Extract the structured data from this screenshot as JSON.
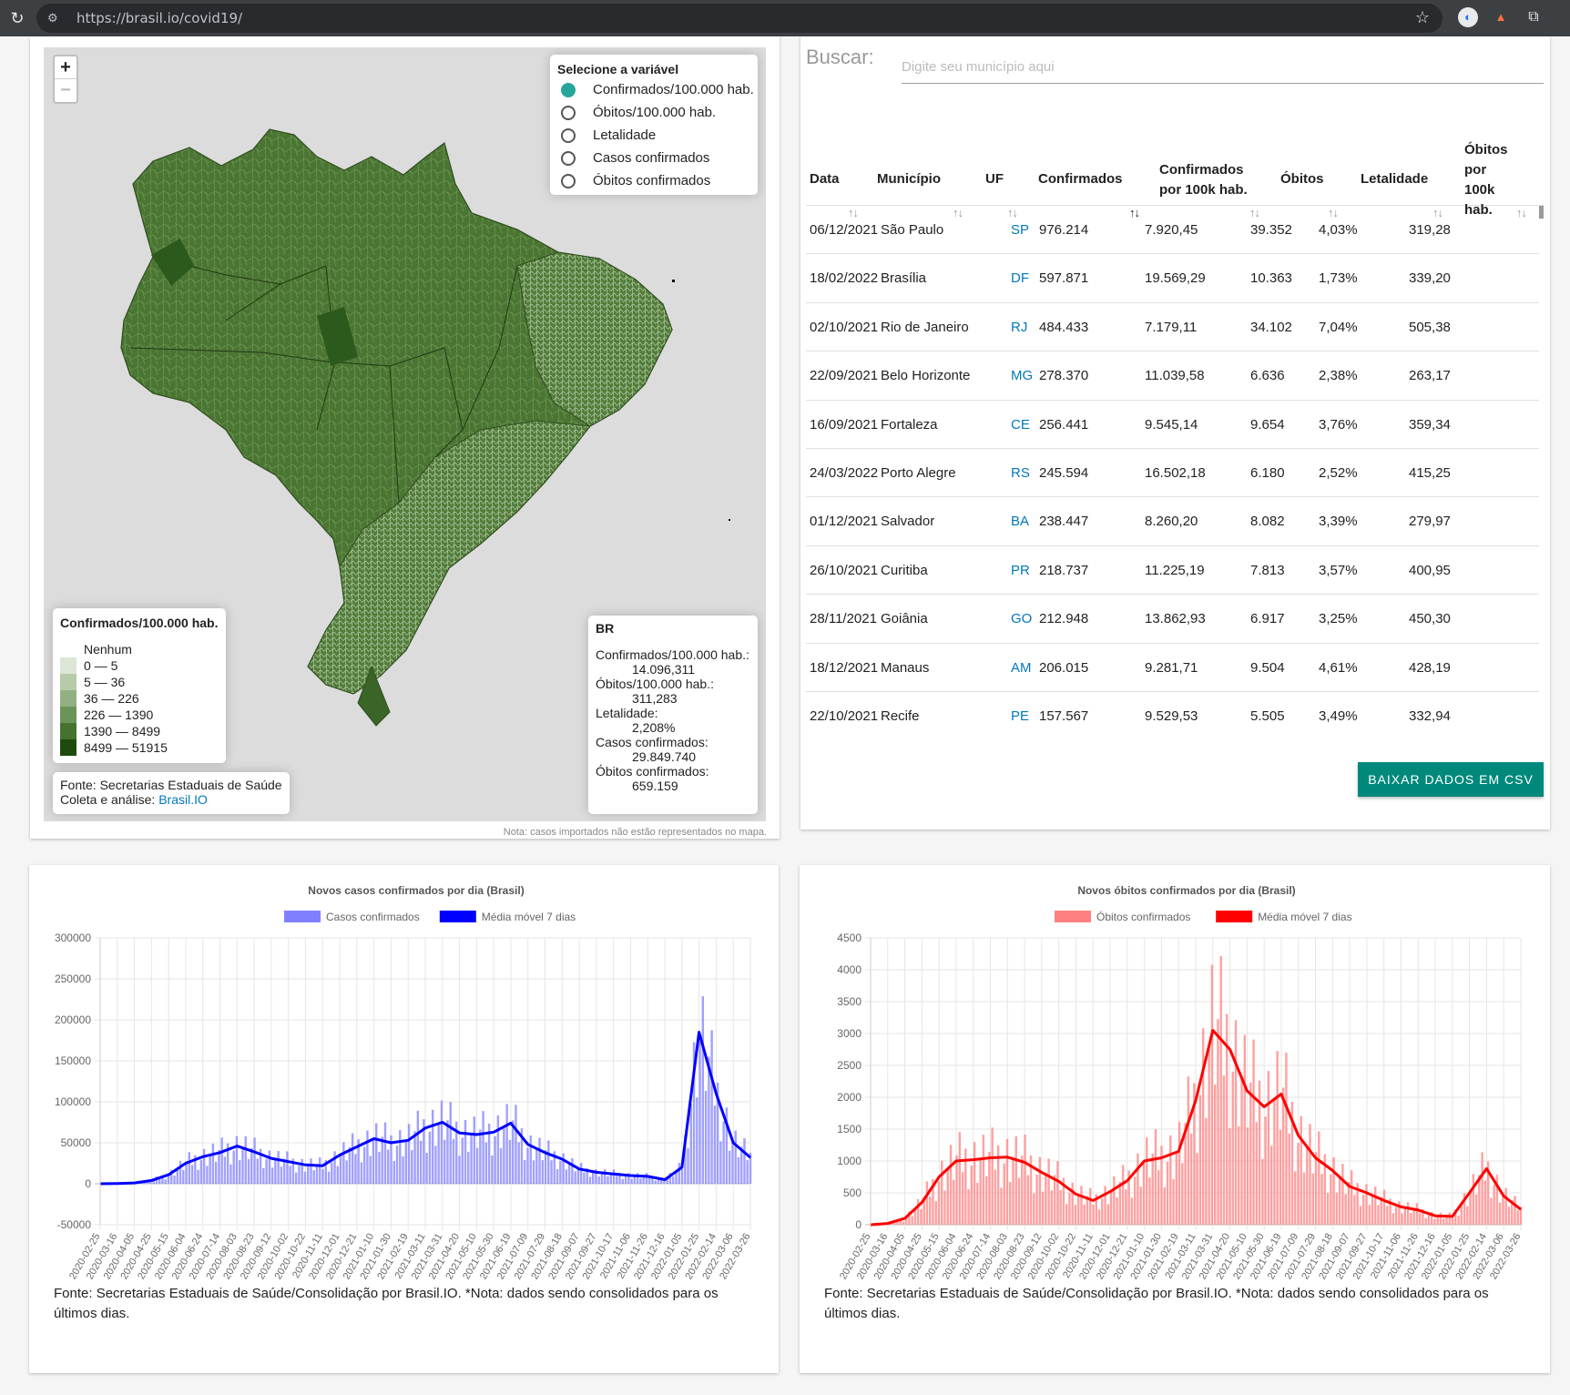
{
  "browser": {
    "url": "https://brasil.io/covid19/"
  },
  "map": {
    "zoom_in": "+",
    "zoom_out": "−",
    "variable_selector": {
      "title": "Selecione a variável",
      "options": [
        {
          "label": "Confirmados/100.000 hab.",
          "selected": true
        },
        {
          "label": "Óbitos/100.000 hab.",
          "selected": false
        },
        {
          "label": "Letalidade",
          "selected": false
        },
        {
          "label": "Casos confirmados",
          "selected": false
        },
        {
          "label": "Óbitos confirmados",
          "selected": false
        }
      ]
    },
    "legend": {
      "title": "Confirmados/100.000 hab.",
      "items": [
        {
          "label": "Nenhum",
          "color": "#ffffff"
        },
        {
          "label": "0 — 5",
          "color": "#dde6d6"
        },
        {
          "label": "5 — 36",
          "color": "#b7cba9"
        },
        {
          "label": "36 — 226",
          "color": "#93b082"
        },
        {
          "label": "226 — 1390",
          "color": "#6d9458"
        },
        {
          "label": "1390 — 8499",
          "color": "#46722f"
        },
        {
          "label": "8499 — 51915",
          "color": "#1f4a0e"
        }
      ]
    },
    "source": {
      "line1": "Fonte: Secretarias Estaduais de Saúde",
      "line2_prefix": "Coleta e análise: ",
      "line2_link": "Brasil.IO"
    },
    "summary": {
      "region": "BR",
      "rows": [
        {
          "label": "Confirmados/100.000 hab.:",
          "value": "14.096,311"
        },
        {
          "label": "Óbitos/100.000 hab.:",
          "value": "311,283"
        },
        {
          "label": "Letalidade:",
          "value": "2,208%"
        },
        {
          "label": "Casos confirmados:",
          "value": "29.849.740"
        },
        {
          "label": "Óbitos confirmados:",
          "value": "659.159"
        }
      ]
    },
    "note": "Nota: casos importados não estão representados no mapa."
  },
  "table": {
    "search_label": "Buscar:",
    "search_placeholder": "Digite seu município aqui",
    "headers": {
      "data": "Data",
      "municipio": "Município",
      "uf": "UF",
      "confirmados": "Confirmados",
      "conf100k_1": "Confirmados",
      "conf100k_2": "por 100k hab.",
      "obitos": "Óbitos",
      "letalidade": "Letalidade",
      "obitos100k_1": "Óbitos",
      "obitos100k_2": "por",
      "obitos100k_3": "100k",
      "obitos100k_4": "hab."
    },
    "sort_icon": "↑↓",
    "rows": [
      [
        "06/12/2021",
        "São Paulo",
        "SP",
        "976.214",
        "7.920,45",
        "39.352",
        "4,03%",
        "319,28"
      ],
      [
        "18/02/2022",
        "Brasília",
        "DF",
        "597.871",
        "19.569,29",
        "10.363",
        "1,73%",
        "339,20"
      ],
      [
        "02/10/2021",
        "Rio de Janeiro",
        "RJ",
        "484.433",
        "7.179,11",
        "34.102",
        "7,04%",
        "505,38"
      ],
      [
        "22/09/2021",
        "Belo Horizonte",
        "MG",
        "278.370",
        "11.039,58",
        "6.636",
        "2,38%",
        "263,17"
      ],
      [
        "16/09/2021",
        "Fortaleza",
        "CE",
        "256.441",
        "9.545,14",
        "9.654",
        "3,76%",
        "359,34"
      ],
      [
        "24/03/2022",
        "Porto Alegre",
        "RS",
        "245.594",
        "16.502,18",
        "6.180",
        "2,52%",
        "415,25"
      ],
      [
        "01/12/2021",
        "Salvador",
        "BA",
        "238.447",
        "8.260,20",
        "8.082",
        "3,39%",
        "279,97"
      ],
      [
        "26/10/2021",
        "Curitiba",
        "PR",
        "218.737",
        "11.225,19",
        "7.813",
        "3,57%",
        "400,95"
      ],
      [
        "28/11/2021",
        "Goiânia",
        "GO",
        "212.948",
        "13.862,93",
        "6.917",
        "3,25%",
        "450,30"
      ],
      [
        "18/12/2021",
        "Manaus",
        "AM",
        "206.015",
        "9.281,71",
        "9.504",
        "4,61%",
        "428,19"
      ],
      [
        "22/10/2021",
        "Recife",
        "PE",
        "157.567",
        "9.529,53",
        "5.505",
        "3,49%",
        "332,94"
      ]
    ],
    "download_label": "BAIXAR DADOS EM CSV"
  },
  "chart_data": [
    {
      "type": "bar",
      "title": "Novos casos confirmados por dia (Brasil)",
      "legend_position": "top",
      "grid": true,
      "ylim": [
        -50000,
        300000
      ],
      "y_ticks": [
        300000,
        250000,
        200000,
        150000,
        100000,
        50000,
        0,
        -50000
      ],
      "x_ticks": [
        "2020-02-25",
        "2020-03-16",
        "2020-04-05",
        "2020-04-25",
        "2020-05-15",
        "2020-06-04",
        "2020-06-24",
        "2020-07-14",
        "2020-08-03",
        "2020-08-23",
        "2020-09-12",
        "2020-10-02",
        "2020-10-22",
        "2020-11-11",
        "2020-12-01",
        "2020-12-21",
        "2021-01-10",
        "2021-01-30",
        "2021-02-19",
        "2021-03-11",
        "2021-03-31",
        "2021-04-20",
        "2021-05-10",
        "2021-05-30",
        "2021-06-19",
        "2021-07-09",
        "2021-07-29",
        "2021-08-18",
        "2021-09-07",
        "2021-09-27",
        "2021-10-17",
        "2021-11-06",
        "2021-11-26",
        "2021-12-16",
        "2022-01-05",
        "2022-01-25",
        "2022-02-14",
        "2022-03-06",
        "2022-03-26"
      ],
      "series": [
        {
          "name": "Casos confirmados",
          "kind": "bar",
          "color": "#8080ff"
        },
        {
          "name": "Média móvel 7 dias",
          "kind": "line",
          "color": "#0000ff"
        }
      ],
      "moving_average_points": [
        {
          "x": "2020-02-25",
          "y": 0
        },
        {
          "x": "2020-03-16",
          "y": 200
        },
        {
          "x": "2020-04-05",
          "y": 1000
        },
        {
          "x": "2020-04-25",
          "y": 4000
        },
        {
          "x": "2020-05-15",
          "y": 11000
        },
        {
          "x": "2020-06-04",
          "y": 25000
        },
        {
          "x": "2020-06-24",
          "y": 33000
        },
        {
          "x": "2020-07-14",
          "y": 38000
        },
        {
          "x": "2020-08-03",
          "y": 46000
        },
        {
          "x": "2020-08-23",
          "y": 39000
        },
        {
          "x": "2020-09-12",
          "y": 31000
        },
        {
          "x": "2020-10-02",
          "y": 27000
        },
        {
          "x": "2020-10-22",
          "y": 23000
        },
        {
          "x": "2020-11-11",
          "y": 22000
        },
        {
          "x": "2020-12-01",
          "y": 35000
        },
        {
          "x": "2020-12-21",
          "y": 45000
        },
        {
          "x": "2021-01-10",
          "y": 55000
        },
        {
          "x": "2021-01-30",
          "y": 50000
        },
        {
          "x": "2021-02-19",
          "y": 53000
        },
        {
          "x": "2021-03-11",
          "y": 68000
        },
        {
          "x": "2021-03-31",
          "y": 75000
        },
        {
          "x": "2021-04-20",
          "y": 62000
        },
        {
          "x": "2021-05-10",
          "y": 60000
        },
        {
          "x": "2021-05-30",
          "y": 63000
        },
        {
          "x": "2021-06-19",
          "y": 74000
        },
        {
          "x": "2021-07-09",
          "y": 48000
        },
        {
          "x": "2021-07-29",
          "y": 38000
        },
        {
          "x": "2021-08-18",
          "y": 30000
        },
        {
          "x": "2021-09-07",
          "y": 18000
        },
        {
          "x": "2021-09-27",
          "y": 14000
        },
        {
          "x": "2021-10-17",
          "y": 12000
        },
        {
          "x": "2021-11-06",
          "y": 10000
        },
        {
          "x": "2021-11-26",
          "y": 9000
        },
        {
          "x": "2021-12-16",
          "y": 5000
        },
        {
          "x": "2022-01-05",
          "y": 20000
        },
        {
          "x": "2022-01-25",
          "y": 185000
        },
        {
          "x": "2022-02-14",
          "y": 110000
        },
        {
          "x": "2022-03-06",
          "y": 50000
        },
        {
          "x": "2022-03-26",
          "y": 32000
        }
      ],
      "footnote": "Fonte: Secretarias Estaduais de Saúde/Consolidação por Brasil.IO. *Nota: dados sendo consolidados para os últimos dias."
    },
    {
      "type": "bar",
      "title": "Novos óbitos confirmados por dia (Brasil)",
      "legend_position": "top",
      "grid": true,
      "ylim": [
        0,
        4500
      ],
      "y_ticks": [
        4500,
        4000,
        3500,
        3000,
        2500,
        2000,
        1500,
        1000,
        500,
        0
      ],
      "x_ticks": [
        "2020-02-25",
        "2020-03-16",
        "2020-04-05",
        "2020-04-25",
        "2020-05-15",
        "2020-06-04",
        "2020-06-24",
        "2020-07-14",
        "2020-08-03",
        "2020-08-23",
        "2020-09-12",
        "2020-10-02",
        "2020-10-22",
        "2020-11-11",
        "2020-12-01",
        "2020-12-21",
        "2021-01-10",
        "2021-01-30",
        "2021-02-19",
        "2021-03-11",
        "2021-03-31",
        "2021-04-20",
        "2021-05-10",
        "2021-05-30",
        "2021-06-19",
        "2021-07-09",
        "2021-07-29",
        "2021-08-18",
        "2021-09-07",
        "2021-09-27",
        "2021-10-17",
        "2021-11-06",
        "2021-11-26",
        "2021-12-16",
        "2022-01-05",
        "2022-01-25",
        "2022-02-14",
        "2022-03-06",
        "2022-03-26"
      ],
      "series": [
        {
          "name": "Óbitos confirmados",
          "kind": "bar",
          "color": "#ff8080"
        },
        {
          "name": "Média móvel 7 dias",
          "kind": "line",
          "color": "#ff0000"
        }
      ],
      "moving_average_points": [
        {
          "x": "2020-02-25",
          "y": 0
        },
        {
          "x": "2020-03-16",
          "y": 20
        },
        {
          "x": "2020-04-05",
          "y": 100
        },
        {
          "x": "2020-04-25",
          "y": 350
        },
        {
          "x": "2020-05-15",
          "y": 750
        },
        {
          "x": "2020-06-04",
          "y": 1000
        },
        {
          "x": "2020-06-24",
          "y": 1020
        },
        {
          "x": "2020-07-14",
          "y": 1050
        },
        {
          "x": "2020-08-03",
          "y": 1060
        },
        {
          "x": "2020-08-23",
          "y": 980
        },
        {
          "x": "2020-09-12",
          "y": 820
        },
        {
          "x": "2020-10-02",
          "y": 680
        },
        {
          "x": "2020-10-22",
          "y": 480
        },
        {
          "x": "2020-11-11",
          "y": 380
        },
        {
          "x": "2020-12-01",
          "y": 520
        },
        {
          "x": "2020-12-21",
          "y": 690
        },
        {
          "x": "2021-01-10",
          "y": 1000
        },
        {
          "x": "2021-01-30",
          "y": 1050
        },
        {
          "x": "2021-02-19",
          "y": 1150
        },
        {
          "x": "2021-03-11",
          "y": 1950
        },
        {
          "x": "2021-03-31",
          "y": 3050
        },
        {
          "x": "2021-04-20",
          "y": 2750
        },
        {
          "x": "2021-05-10",
          "y": 2100
        },
        {
          "x": "2021-05-30",
          "y": 1850
        },
        {
          "x": "2021-06-19",
          "y": 2050
        },
        {
          "x": "2021-07-09",
          "y": 1400
        },
        {
          "x": "2021-07-29",
          "y": 1050
        },
        {
          "x": "2021-08-18",
          "y": 850
        },
        {
          "x": "2021-09-07",
          "y": 600
        },
        {
          "x": "2021-09-27",
          "y": 500
        },
        {
          "x": "2021-10-17",
          "y": 380
        },
        {
          "x": "2021-11-06",
          "y": 280
        },
        {
          "x": "2021-11-26",
          "y": 230
        },
        {
          "x": "2021-12-16",
          "y": 140
        },
        {
          "x": "2022-01-05",
          "y": 130
        },
        {
          "x": "2022-01-25",
          "y": 500
        },
        {
          "x": "2022-02-14",
          "y": 880
        },
        {
          "x": "2022-03-06",
          "y": 450
        },
        {
          "x": "2022-03-26",
          "y": 240
        }
      ],
      "footnote": "Fonte: Secretarias Estaduais de Saúde/Consolidação por Brasil.IO. *Nota: dados sendo consolidados para os últimos dias."
    }
  ]
}
